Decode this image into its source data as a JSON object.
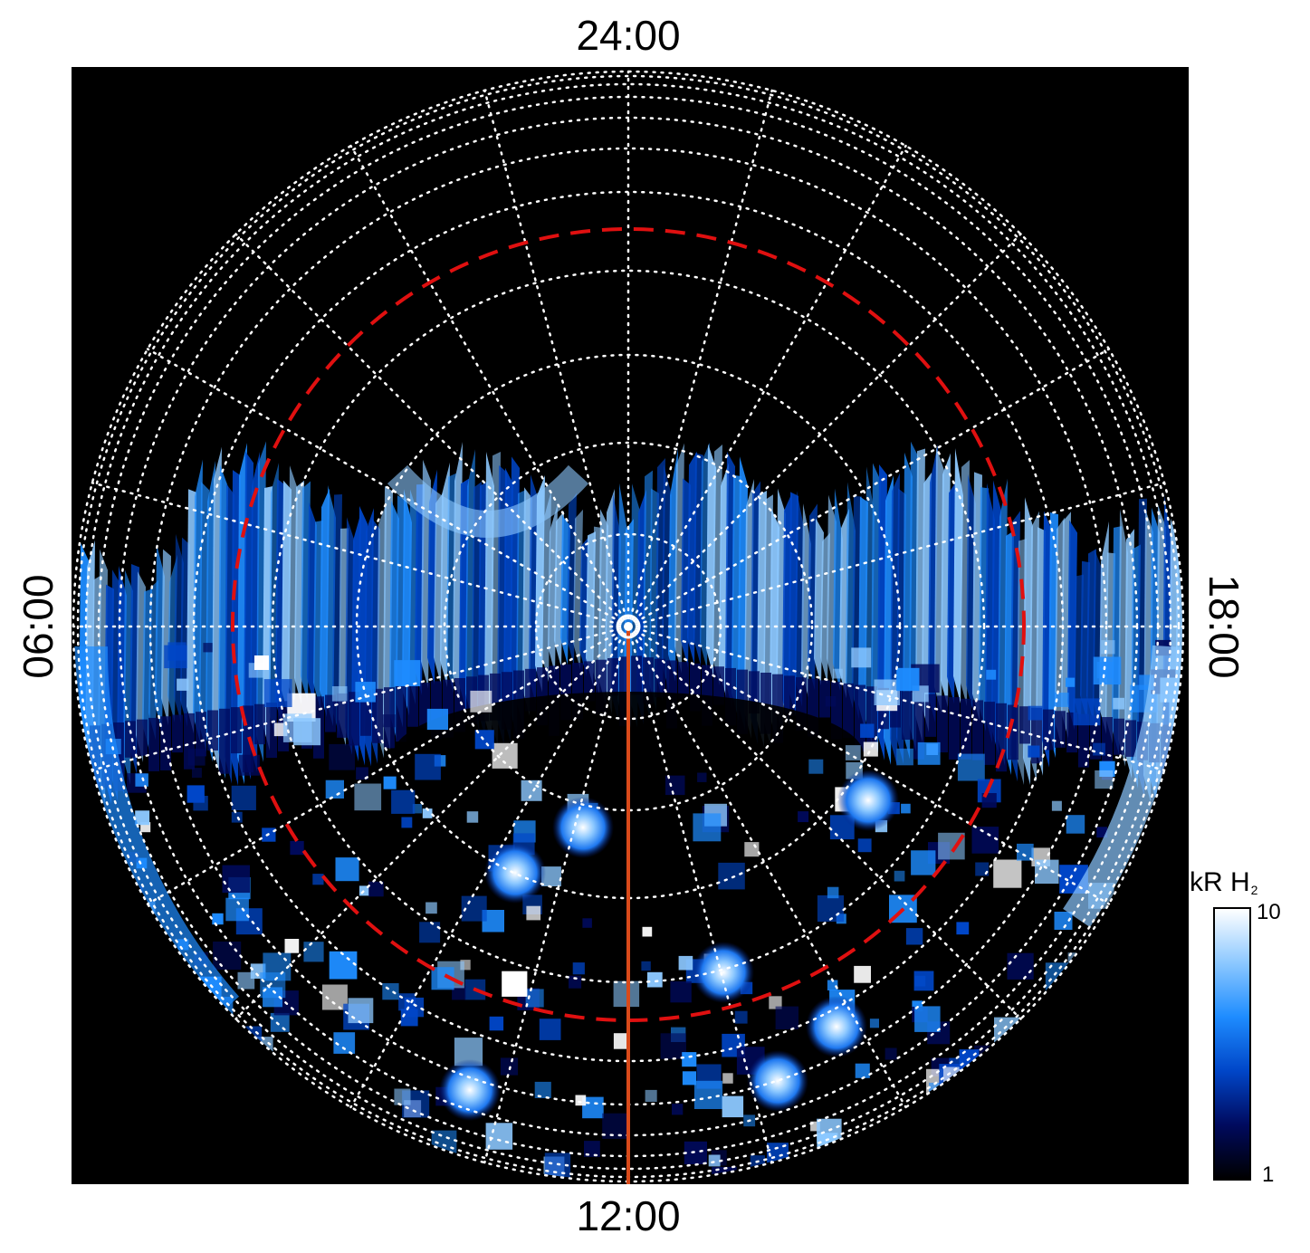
{
  "labels": {
    "top": "24:00",
    "bottom": "12:00",
    "left": "06:00",
    "right": "18:00"
  },
  "colorbar": {
    "title": "kR H",
    "title_subscript": "2",
    "max_label": "10",
    "min_label": "1",
    "colors": [
      "#000000",
      "#000a5e",
      "#0046c8",
      "#1e8cff",
      "#8cc8ff",
      "#ffffff"
    ],
    "scale": "log"
  },
  "colors": {
    "background": "#000000",
    "grid": "#ffffff",
    "reference_circle": "#e01010",
    "noon_line": "#d94a1a"
  }
}
